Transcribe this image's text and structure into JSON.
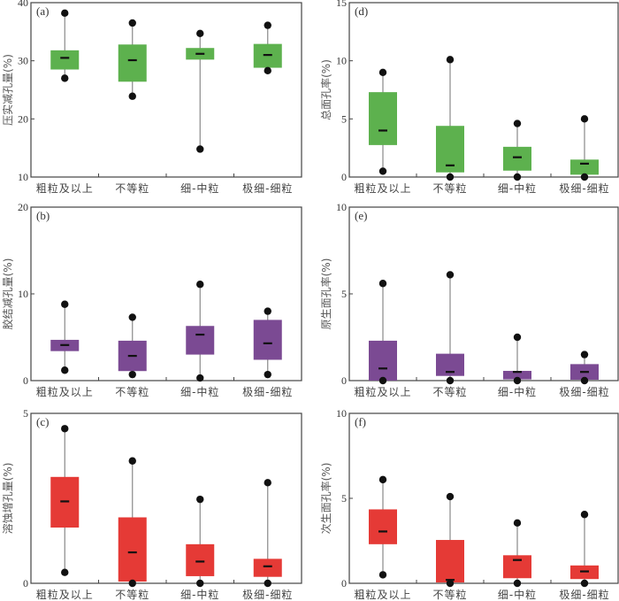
{
  "chart_data": [
    {
      "type": "box",
      "panel": "(a)",
      "ylabel": "压实减孔量(%)",
      "ylim": [
        10,
        40
      ],
      "yticks": [
        10,
        20,
        30,
        40
      ],
      "categories": [
        "粗粒及以上",
        "不等粒",
        "细-中粒",
        "极细-细粒"
      ],
      "color": "#5db14e",
      "boxes": [
        {
          "max": 38.2,
          "q3": 31.8,
          "median": 30.5,
          "q1": 28.5,
          "min": 27.0
        },
        {
          "max": 36.5,
          "q3": 32.8,
          "median": 30.1,
          "q1": 26.4,
          "min": 23.9
        },
        {
          "max": 34.7,
          "q3": 32.2,
          "median": 31.2,
          "q1": 30.2,
          "min": 14.8
        },
        {
          "max": 36.1,
          "q3": 32.9,
          "median": 31.0,
          "q1": 28.8,
          "min": 28.3
        }
      ]
    },
    {
      "type": "box",
      "panel": "(b)",
      "ylabel": "胶结减孔量(%)",
      "ylim": [
        0,
        20
      ],
      "yticks": [
        0,
        10,
        20
      ],
      "categories": [
        "粗粒及以上",
        "不等粒",
        "细-中粒",
        "极细-细粒"
      ],
      "color": "#7b4a93",
      "boxes": [
        {
          "max": 8.8,
          "q3": 4.7,
          "median": 4.1,
          "q1": 3.4,
          "min": 1.2
        },
        {
          "max": 7.3,
          "q3": 4.6,
          "median": 2.85,
          "q1": 1.1,
          "min": 0.7
        },
        {
          "max": 11.1,
          "q3": 6.3,
          "median": 5.3,
          "q1": 3.0,
          "min": 0.3
        },
        {
          "max": 8.0,
          "q3": 7.0,
          "median": 4.3,
          "q1": 2.4,
          "min": 0.7
        }
      ]
    },
    {
      "type": "box",
      "panel": "(c)",
      "ylabel": "溶蚀增孔量(%)",
      "ylim": [
        0,
        5
      ],
      "yticks": [
        0,
        5
      ],
      "categories": [
        "粗粒及以上",
        "不等粒",
        "细-中粒",
        "极细-细粒"
      ],
      "color": "#e53a36",
      "boxes": [
        {
          "max": 4.55,
          "q3": 3.13,
          "median": 2.41,
          "q1": 1.64,
          "min": 0.32
        },
        {
          "max": 3.6,
          "q3": 1.94,
          "median": 0.91,
          "q1": 0.05,
          "min": 0
        },
        {
          "max": 2.47,
          "q3": 1.15,
          "median": 0.64,
          "q1": 0.21,
          "min": 0
        },
        {
          "max": 2.96,
          "q3": 0.72,
          "median": 0.5,
          "q1": 0.19,
          "min": 0
        }
      ]
    },
    {
      "type": "box",
      "panel": "(d)",
      "ylabel": "总面孔率(%)",
      "ylim": [
        0,
        15
      ],
      "yticks": [
        0,
        5,
        10,
        15
      ],
      "categories": [
        "粗粒及以上",
        "不等粒",
        "细-中粒",
        "极细-细粒"
      ],
      "color": "#5db14e",
      "boxes": [
        {
          "max": 9.0,
          "q3": 7.3,
          "median": 4.0,
          "q1": 2.75,
          "min": 0.5
        },
        {
          "max": 10.1,
          "q3": 4.4,
          "median": 1.0,
          "q1": 0.4,
          "min": 0
        },
        {
          "max": 4.6,
          "q3": 2.6,
          "median": 1.7,
          "q1": 0.55,
          "min": 0
        },
        {
          "max": 5.0,
          "q3": 1.5,
          "median": 1.15,
          "q1": 0.2,
          "min": 0
        }
      ]
    },
    {
      "type": "box",
      "panel": "(e)",
      "ylabel": "原生面孔率(%)",
      "ylim": [
        0,
        10
      ],
      "yticks": [
        0,
        5,
        10
      ],
      "categories": [
        "粗粒及以上",
        "不等粒",
        "细-中粒",
        "极细-细粒"
      ],
      "color": "#7b4a93",
      "boxes": [
        {
          "max": 5.6,
          "q3": 2.3,
          "median": 0.7,
          "q1": 0.0,
          "min": 0
        },
        {
          "max": 6.1,
          "q3": 1.55,
          "median": 0.5,
          "q1": 0.27,
          "min": 0
        },
        {
          "max": 2.5,
          "q3": 0.56,
          "median": 0.5,
          "q1": 0.07,
          "min": 0
        },
        {
          "max": 1.5,
          "q3": 0.95,
          "median": 0.5,
          "q1": 0.05,
          "min": 0
        }
      ]
    },
    {
      "type": "box",
      "panel": "(f)",
      "ylabel": "次生面孔率(%)",
      "ylim": [
        0,
        10
      ],
      "yticks": [
        0,
        5,
        10
      ],
      "categories": [
        "粗粒及以上",
        "不等粒",
        "细-中粒",
        "极细-细粒"
      ],
      "color": "#e53a36",
      "boxes": [
        {
          "max": 6.1,
          "q3": 4.35,
          "median": 3.05,
          "q1": 2.3,
          "min": 0.5
        },
        {
          "max": 5.1,
          "q3": 2.55,
          "median": 0.2,
          "q1": 0.05,
          "min": 0
        },
        {
          "max": 3.55,
          "q3": 1.65,
          "median": 1.37,
          "q1": 0.3,
          "min": 0
        },
        {
          "max": 4.05,
          "q3": 1.05,
          "median": 0.7,
          "q1": 0.25,
          "min": 0
        }
      ]
    }
  ]
}
